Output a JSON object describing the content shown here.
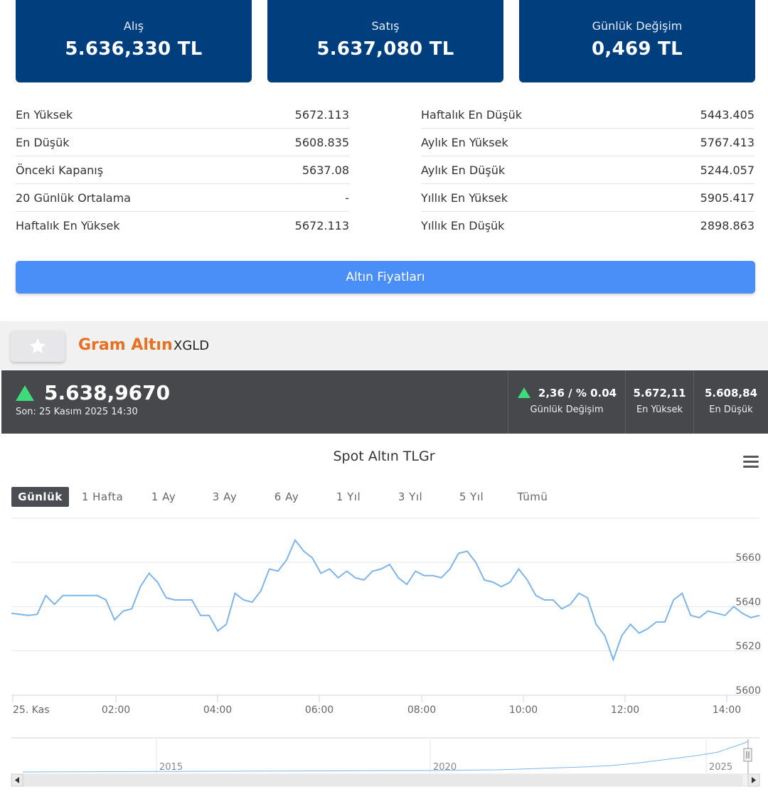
{
  "cards": [
    {
      "label": "Alış",
      "value": "5.636,330 TL"
    },
    {
      "label": "Satış",
      "value": "5.637,080 TL"
    },
    {
      "label": "Günlük Değişim",
      "value": "0,469 TL"
    }
  ],
  "stats_left": [
    {
      "label": "En Yüksek",
      "value": "5672.113"
    },
    {
      "label": "En Düşük",
      "value": "5608.835"
    },
    {
      "label": "Önceki Kapanış",
      "value": "5637.08"
    },
    {
      "label": "20 Günlük Ortalama",
      "value": "-"
    },
    {
      "label": "Haftalık En Yüksek",
      "value": "5672.113"
    }
  ],
  "stats_right": [
    {
      "label": "Haftalık En Düşük",
      "value": "5443.405"
    },
    {
      "label": "Aylık En Yüksek",
      "value": "5767.413"
    },
    {
      "label": "Aylık En Düşük",
      "value": "5244.057"
    },
    {
      "label": "Yıllık En Yüksek",
      "value": "5905.417"
    },
    {
      "label": "Yıllık En Düşük",
      "value": "2898.863"
    }
  ],
  "gold_prices_button": "Altın Fiyatları",
  "instrument": {
    "name": "Gram Altın",
    "symbol": "XGLD"
  },
  "ticker": {
    "price": "5.638,9670",
    "last_update": "Son: 25 Kasım 2025 14:30",
    "change_value": "2,36 / % 0.04",
    "change_label": "Günlük Değişim",
    "high_value": "5.672,11",
    "high_label": "En Yüksek",
    "low_value": "5.608,84",
    "low_label": "En Düşük",
    "up_color": "#3ddb7a"
  },
  "chart_title": "Spot Altın TLGr",
  "ranges": [
    "Günlük",
    "1 Hafta",
    "1 Ay",
    "3 Ay",
    "6 Ay",
    "1 Yıl",
    "3 Yıl",
    "5 Yıl",
    "Tümü"
  ],
  "active_range": "Günlük",
  "chart_data": {
    "type": "line",
    "title": "Spot Altın TLGr",
    "line_color": "#7cb5ec",
    "x_tick_labels": [
      "25. Kas",
      "02:00",
      "04:00",
      "06:00",
      "08:00",
      "10:00",
      "12:00",
      "14:00"
    ],
    "y_tick_labels": [
      "5600",
      "5620",
      "5640",
      "5660"
    ],
    "ylim": [
      5600,
      5660
    ],
    "grid": true,
    "series": [
      {
        "values": [
          5637,
          5636.5,
          5636,
          5636.5,
          5645,
          5641,
          5645,
          5645,
          5645,
          5645,
          5645,
          5643,
          5634,
          5638,
          5639,
          5649,
          5655,
          5651,
          5644,
          5643,
          5643,
          5643,
          5636,
          5636,
          5629,
          5632,
          5646,
          5643,
          5642,
          5647,
          5657,
          5656,
          5661,
          5670,
          5665,
          5662,
          5655,
          5657,
          5653,
          5656,
          5653,
          5652,
          5656,
          5657,
          5659,
          5653,
          5650,
          5656,
          5654,
          5654,
          5653,
          5657,
          5664,
          5665,
          5660,
          5652,
          5651,
          5649,
          5651,
          5657,
          5652,
          5645,
          5643,
          5643,
          5639,
          5641,
          5646,
          5644,
          5632,
          5627,
          5616,
          5627,
          5632,
          5628,
          5630,
          5633,
          5633,
          5643,
          5646,
          5636,
          5635,
          5638,
          5637,
          5636,
          5640,
          5637,
          5635,
          5636
        ]
      }
    ]
  },
  "navigator": {
    "year_labels": [
      "2015",
      "2020",
      "2025"
    ]
  }
}
